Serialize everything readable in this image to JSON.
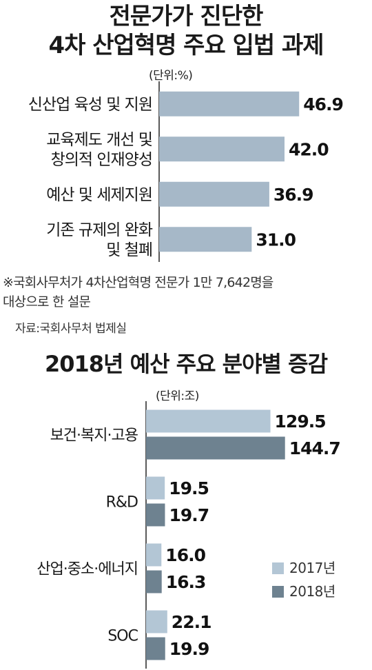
{
  "chart_data": [
    {
      "type": "bar",
      "orientation": "horizontal",
      "title_lines": [
        "전문가가 진단한",
        "4차 산업혁명 주요 입법 과제"
      ],
      "unit": "(단위:%)",
      "categories": [
        [
          "신산업 육성 및 지원"
        ],
        [
          "교육제도 개선 및",
          "창의적 인재양성"
        ],
        [
          "예산 및 세제지원"
        ],
        [
          "기존 규제의 완화",
          "및 철폐"
        ]
      ],
      "values": [
        46.9,
        42.0,
        36.9,
        31.0
      ],
      "value_labels": [
        "46.9",
        "42.0",
        "36.9",
        "31.0"
      ],
      "xlim": [
        0,
        60
      ],
      "color": "#a6b8c8",
      "note_lines": [
        "※국회사무처가 4차산업혁명 전문가 1만 7,642명을",
        "대상으로 한 설문"
      ],
      "source": "자료:국회사무처 법제실"
    },
    {
      "type": "bar",
      "orientation": "horizontal",
      "title": "2018년 예산 주요 분야별 증감",
      "unit": "(단위:조)",
      "categories": [
        "보건·복지·고용",
        "R&D",
        "산업·중소·에너지",
        "SOC"
      ],
      "series": [
        {
          "name": "2017년",
          "color": "#b3c6d5",
          "values": [
            129.5,
            19.5,
            16.0,
            22.1
          ],
          "value_labels": [
            "129.5",
            "19.5",
            "16.0",
            "22.1"
          ]
        },
        {
          "name": "2018년",
          "color": "#6e8290",
          "values": [
            144.7,
            19.7,
            16.3,
            19.9
          ],
          "value_labels": [
            "144.7",
            "19.7",
            "16.3",
            "19.9"
          ]
        }
      ],
      "xlim": [
        0,
        170
      ],
      "legend_position": "right"
    }
  ]
}
